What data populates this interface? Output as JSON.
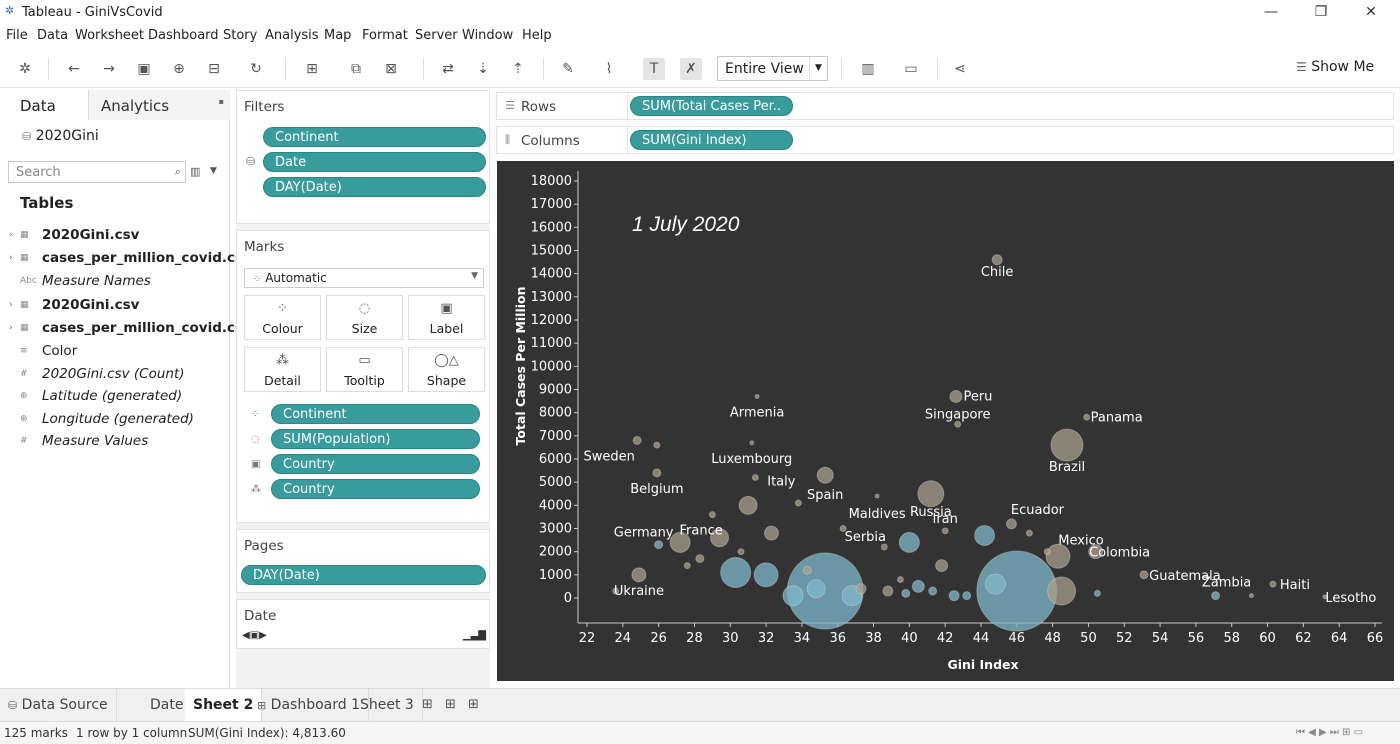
{
  "window": {
    "title": "Tableau - GiniVsCovid"
  },
  "menu": [
    "File",
    "Data",
    "Worksheet",
    "Dashboard",
    "Story",
    "Analysis",
    "Map",
    "Format",
    "Server",
    "Window",
    "Help"
  ],
  "toolbar": {
    "fit_mode": "Entire View",
    "show_me": "Show Me"
  },
  "data_pane": {
    "tab_data": "Data",
    "tab_analytics": "Analytics",
    "datasource": "2020Gini",
    "search_placeholder": "Search",
    "tables_heading": "Tables",
    "fields": [
      {
        "label": "2020Gini.csv",
        "style": "b",
        "icon": "table-icon"
      },
      {
        "label": "cases_per_million_covid.csv",
        "style": "b",
        "icon": "table-icon"
      },
      {
        "label": "Measure Names",
        "style": "i",
        "icon": "abc-icon"
      },
      {
        "label": "2020Gini.csv",
        "style": "b",
        "icon": "table-icon"
      },
      {
        "label": "cases_per_million_covid.csv",
        "style": "b",
        "icon": "table-icon"
      },
      {
        "label": "Color",
        "style": "",
        "icon": "dimension-icon"
      },
      {
        "label": "2020Gini.csv (Count)",
        "style": "i",
        "icon": "measure-icon"
      },
      {
        "label": "Latitude (generated)",
        "style": "i",
        "icon": "globe-icon"
      },
      {
        "label": "Longitude (generated)",
        "style": "i",
        "icon": "globe-icon"
      },
      {
        "label": "Measure Values",
        "style": "i",
        "icon": "measure-icon"
      }
    ]
  },
  "filters": {
    "title": "Filters",
    "pills": [
      "Continent",
      "Date",
      "DAY(Date)"
    ]
  },
  "marks": {
    "title": "Marks",
    "type": "Automatic",
    "buttons": [
      "Colour",
      "Size",
      "Label",
      "Detail",
      "Tooltip",
      "Shape"
    ],
    "pills": [
      "Continent",
      "SUM(Population)",
      "Country",
      "Country"
    ]
  },
  "pages": {
    "title": "Pages",
    "pill": "DAY(Date)"
  },
  "date_card": {
    "title": "Date"
  },
  "rows": {
    "label": "Rows",
    "pill": "SUM(Total Cases Per.."
  },
  "columns": {
    "label": "Columns",
    "pill": "SUM(Gini Index)"
  },
  "sheet_tabs": [
    "Data Source",
    "Date",
    "Sheet 2",
    "Dashboard 1",
    "Sheet 3"
  ],
  "active_sheet": "Sheet 2",
  "status": {
    "marks": "125 marks",
    "dims": "1 row by 1 column",
    "sum": "SUM(Gini Index): 4,813.60"
  },
  "colors": {
    "pill": "#389b9c",
    "viz_bg": "#333333",
    "bubble_tan": "#a89f8c",
    "bubble_blue": "#7fb8cc"
  },
  "chart_data": {
    "type": "scatter",
    "title": "1 July 2020",
    "xlabel": "Gini Index",
    "ylabel": "Total Cases Per Million",
    "xlim": [
      21,
      66
    ],
    "ylim": [
      -800,
      18500
    ],
    "x_ticks": [
      22,
      24,
      26,
      28,
      30,
      32,
      34,
      36,
      38,
      40,
      42,
      44,
      46,
      48,
      50,
      52,
      54,
      56,
      58,
      60,
      62,
      64,
      66
    ],
    "y_ticks": [
      0,
      1000,
      2000,
      3000,
      4000,
      5000,
      6000,
      7000,
      8000,
      9000,
      10000,
      11000,
      12000,
      13000,
      14000,
      15000,
      16000,
      17000,
      18000
    ],
    "points": [
      {
        "label": "Chile",
        "x": 44.9,
        "y": 14600,
        "r": 5,
        "c": "tan"
      },
      {
        "label": "Peru",
        "x": 42.6,
        "y": 8700,
        "r": 6,
        "c": "tan"
      },
      {
        "label": "Panama",
        "x": 49.9,
        "y": 7800,
        "r": 3,
        "c": "tan"
      },
      {
        "label": "Singapore",
        "x": 42.7,
        "y": 7500,
        "r": 3,
        "c": "tan"
      },
      {
        "label": "Brazil",
        "x": 48.8,
        "y": 6600,
        "r": 16,
        "c": "tan"
      },
      {
        "label": "Armenia",
        "x": 31.5,
        "y": 8700,
        "r": 2,
        "c": "tan"
      },
      {
        "label": "Sweden",
        "x": 24.8,
        "y": 6800,
        "r": 4,
        "c": "tan"
      },
      {
        "label": "Luxembourg",
        "x": 31.2,
        "y": 6700,
        "r": 2,
        "c": "tan"
      },
      {
        "label": "Belgium",
        "x": 25.9,
        "y": 5400,
        "r": 4,
        "c": "tan"
      },
      {
        "label": "Italy",
        "x": 31.4,
        "y": 5200,
        "r": 3,
        "c": "tan"
      },
      {
        "label": "Spain",
        "x": 35.3,
        "y": 5300,
        "r": 8,
        "c": "tan"
      },
      {
        "label": "Maldives",
        "x": 38.2,
        "y": 4400,
        "r": 2,
        "c": "tan"
      },
      {
        "label": "Russia",
        "x": 41.2,
        "y": 4500,
        "r": 13,
        "c": "tan"
      },
      {
        "label": "Iran",
        "x": 42.0,
        "y": 2900,
        "r": 3,
        "c": "tan"
      },
      {
        "label": "Ecuador",
        "x": 45.7,
        "y": 3200,
        "r": 5,
        "c": "tan"
      },
      {
        "label": "Mexico",
        "x": 48.3,
        "y": 1800,
        "r": 12,
        "c": "tan"
      },
      {
        "label": "Colombia",
        "x": 50.4,
        "y": 2000,
        "r": 7,
        "c": "tan"
      },
      {
        "label": "Guatemala",
        "x": 53.1,
        "y": 1000,
        "r": 4,
        "c": "tan"
      },
      {
        "label": "Zambia",
        "x": 57.1,
        "y": 100,
        "r": 4,
        "c": "blue"
      },
      {
        "label": "Haiti",
        "x": 60.3,
        "y": 600,
        "r": 3,
        "c": "tan"
      },
      {
        "label": "Lesotho",
        "x": 63.2,
        "y": 50,
        "r": 2,
        "c": "tan"
      },
      {
        "label": "Ukraine",
        "x": 24.9,
        "y": 1000,
        "r": 7,
        "c": "tan"
      },
      {
        "label": "Germany",
        "x": 26.0,
        "y": 2300,
        "r": 4,
        "c": "blue"
      },
      {
        "label": "France",
        "x": 27.2,
        "y": 2400,
        "r": 10,
        "c": "tan"
      },
      {
        "label": "Serbia",
        "x": 38.6,
        "y": 2200,
        "r": 3,
        "c": "tan"
      },
      {
        "label": "",
        "x": 40.0,
        "y": 2400,
        "r": 10,
        "c": "blue"
      },
      {
        "label": "",
        "x": 44.2,
        "y": 2700,
        "r": 10,
        "c": "blue"
      },
      {
        "label": "",
        "x": 35.3,
        "y": 300,
        "r": 38,
        "c": "blue"
      },
      {
        "label": "",
        "x": 46.0,
        "y": 300,
        "r": 40,
        "c": "blue"
      },
      {
        "label": "",
        "x": 30.3,
        "y": 1100,
        "r": 15,
        "c": "blue"
      },
      {
        "label": "",
        "x": 32.0,
        "y": 1000,
        "r": 12,
        "c": "blue"
      },
      {
        "label": "",
        "x": 29.4,
        "y": 2600,
        "r": 9,
        "c": "tan"
      },
      {
        "label": "",
        "x": 31.0,
        "y": 4000,
        "r": 9,
        "c": "tan"
      },
      {
        "label": "",
        "x": 32.3,
        "y": 2800,
        "r": 7,
        "c": "tan"
      },
      {
        "label": "",
        "x": 48.5,
        "y": 300,
        "r": 14,
        "c": "tan"
      },
      {
        "label": "",
        "x": 44.8,
        "y": 600,
        "r": 10,
        "c": "blue"
      },
      {
        "label": "",
        "x": 33.5,
        "y": 100,
        "r": 10,
        "c": "blue"
      },
      {
        "label": "",
        "x": 36.8,
        "y": 100,
        "r": 10,
        "c": "blue"
      },
      {
        "label": "",
        "x": 34.8,
        "y": 400,
        "r": 9,
        "c": "blue"
      },
      {
        "label": "",
        "x": 40.5,
        "y": 500,
        "r": 6,
        "c": "blue"
      },
      {
        "label": "",
        "x": 41.8,
        "y": 1400,
        "r": 6,
        "c": "tan"
      },
      {
        "label": "",
        "x": 38.8,
        "y": 300,
        "r": 5,
        "c": "tan"
      },
      {
        "label": "",
        "x": 39.8,
        "y": 200,
        "r": 4,
        "c": "blue"
      },
      {
        "label": "",
        "x": 42.5,
        "y": 100,
        "r": 5,
        "c": "blue"
      },
      {
        "label": "",
        "x": 43.2,
        "y": 100,
        "r": 4,
        "c": "blue"
      },
      {
        "label": "",
        "x": 41.3,
        "y": 300,
        "r": 4,
        "c": "blue"
      },
      {
        "label": "",
        "x": 37.3,
        "y": 400,
        "r": 5,
        "c": "tan"
      },
      {
        "label": "",
        "x": 33.8,
        "y": 4100,
        "r": 3,
        "c": "tan"
      },
      {
        "label": "",
        "x": 25.9,
        "y": 6600,
        "r": 3,
        "c": "tan"
      },
      {
        "label": "",
        "x": 28.3,
        "y": 1700,
        "r": 4,
        "c": "tan"
      },
      {
        "label": "",
        "x": 27.6,
        "y": 1400,
        "r": 3,
        "c": "tan"
      },
      {
        "label": "",
        "x": 36.3,
        "y": 3000,
        "r": 3,
        "c": "tan"
      },
      {
        "label": "",
        "x": 46.7,
        "y": 2800,
        "r": 3,
        "c": "tan"
      },
      {
        "label": "",
        "x": 47.7,
        "y": 2000,
        "r": 3,
        "c": "tan"
      },
      {
        "label": "",
        "x": 50.5,
        "y": 200,
        "r": 3,
        "c": "blue"
      },
      {
        "label": "",
        "x": 23.6,
        "y": 300,
        "r": 3,
        "c": "tan"
      },
      {
        "label": "",
        "x": 29.0,
        "y": 3600,
        "r": 3,
        "c": "tan"
      },
      {
        "label": "",
        "x": 30.6,
        "y": 2000,
        "r": 3,
        "c": "tan"
      },
      {
        "label": "",
        "x": 39.5,
        "y": 800,
        "r": 3,
        "c": "tan"
      },
      {
        "label": "",
        "x": 34.3,
        "y": 1200,
        "r": 4,
        "c": "tan"
      },
      {
        "label": "",
        "x": 59.1,
        "y": 100,
        "r": 2,
        "c": "tan"
      }
    ]
  }
}
